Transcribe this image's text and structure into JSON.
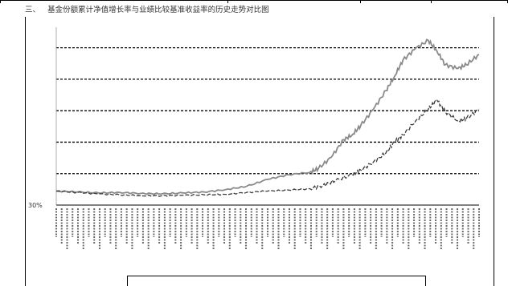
{
  "section": {
    "number": "三、",
    "title": "基金份额累计净值增长率与业绩比较基准收益率的历史走势对比图"
  },
  "chart_data": {
    "type": "line",
    "title": "",
    "xlabel": "",
    "ylabel": "",
    "y_tick_labels": [
      "30%",
      "",
      "",
      "",
      "",
      "",
      "",
      "",
      "",
      "",
      "",
      ""
    ],
    "ylim": [
      -30,
      340
    ],
    "grid": "dashed horizontal",
    "x_tick_labels_legible": false,
    "series": [
      {
        "color": "#8a8a8a",
        "style": "solid",
        "x": [
          0,
          5,
          10,
          15,
          20,
          25,
          30,
          35,
          40,
          45,
          50,
          55,
          60,
          62,
          65,
          68,
          70,
          72,
          75,
          78,
          80,
          82,
          85,
          88,
          90,
          92,
          95,
          97,
          100
        ],
        "values": [
          0,
          -2,
          -4,
          -3,
          -5,
          -6,
          -4,
          -2,
          3,
          10,
          25,
          35,
          40,
          48,
          72,
          110,
          120,
          140,
          175,
          215,
          245,
          280,
          305,
          322,
          300,
          270,
          262,
          270,
          292
        ]
      },
      {
        "color": "#3a3a3a",
        "style": "dashed",
        "x": [
          0,
          5,
          10,
          15,
          20,
          25,
          30,
          35,
          40,
          45,
          50,
          55,
          60,
          63,
          66,
          70,
          72,
          75,
          78,
          80,
          82,
          85,
          88,
          90,
          92,
          95,
          97,
          100
        ],
        "values": [
          0,
          -3,
          -6,
          -8,
          -10,
          -10,
          -9,
          -8,
          -7,
          -3,
          0,
          2,
          5,
          12,
          22,
          35,
          45,
          62,
          82,
          105,
          120,
          150,
          175,
          195,
          170,
          150,
          155,
          175
        ]
      }
    ]
  }
}
